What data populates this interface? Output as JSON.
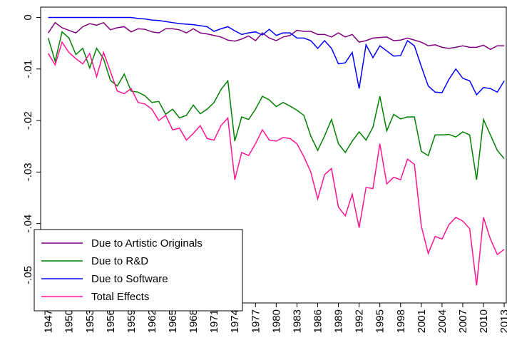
{
  "chart_data": {
    "type": "line",
    "x": [
      1947,
      1948,
      1949,
      1950,
      1951,
      1952,
      1953,
      1954,
      1955,
      1956,
      1957,
      1958,
      1959,
      1960,
      1961,
      1962,
      1963,
      1964,
      1965,
      1966,
      1967,
      1968,
      1969,
      1970,
      1971,
      1972,
      1973,
      1974,
      1975,
      1976,
      1977,
      1978,
      1979,
      1980,
      1981,
      1982,
      1983,
      1984,
      1985,
      1986,
      1987,
      1988,
      1989,
      1990,
      1991,
      1992,
      1993,
      1994,
      1995,
      1996,
      1997,
      1998,
      1999,
      2000,
      2001,
      2002,
      2003,
      2004,
      2005,
      2006,
      2007,
      2008,
      2009,
      2010,
      2011,
      2012,
      2013
    ],
    "series": [
      {
        "name": "Due to Artistic Originals",
        "color": "#800080",
        "values": [
          -0.003,
          -0.001,
          -0.002,
          -0.0025,
          -0.003,
          -0.0018,
          -0.0012,
          -0.0015,
          -0.001,
          -0.0024,
          -0.002,
          -0.0018,
          -0.0028,
          -0.0022,
          -0.0023,
          -0.0028,
          -0.003,
          -0.0022,
          -0.0022,
          -0.0024,
          -0.003,
          -0.0022,
          -0.003,
          -0.0032,
          -0.0035,
          -0.0038,
          -0.0044,
          -0.0046,
          -0.0042,
          -0.0036,
          -0.0045,
          -0.003,
          -0.004,
          -0.0045,
          -0.0038,
          -0.0035,
          -0.0025,
          -0.0027,
          -0.0027,
          -0.0033,
          -0.0033,
          -0.0038,
          -0.003,
          -0.0038,
          -0.0033,
          -0.0048,
          -0.0045,
          -0.004,
          -0.0039,
          -0.0038,
          -0.0045,
          -0.0044,
          -0.004,
          -0.0044,
          -0.0048,
          -0.0055,
          -0.0053,
          -0.0058,
          -0.006,
          -0.0058,
          -0.0055,
          -0.0058,
          -0.0058,
          -0.0054,
          -0.0062,
          -0.0055,
          -0.0055
        ]
      },
      {
        "name": "Due to R&D",
        "color": "#008000",
        "values": [
          -0.004,
          -0.0085,
          -0.0028,
          -0.004,
          -0.0072,
          -0.006,
          -0.0098,
          -0.006,
          -0.008,
          -0.0122,
          -0.0133,
          -0.011,
          -0.0143,
          -0.0145,
          -0.0152,
          -0.0165,
          -0.0163,
          -0.0188,
          -0.0178,
          -0.0195,
          -0.019,
          -0.017,
          -0.0187,
          -0.0178,
          -0.0165,
          -0.014,
          -0.0123,
          -0.024,
          -0.0193,
          -0.0198,
          -0.0178,
          -0.0153,
          -0.016,
          -0.0173,
          -0.0165,
          -0.0172,
          -0.018,
          -0.019,
          -0.023,
          -0.0258,
          -0.023,
          -0.0198,
          -0.0245,
          -0.0262,
          -0.024,
          -0.0222,
          -0.0238,
          -0.0213,
          -0.0153,
          -0.022,
          -0.0188,
          -0.0197,
          -0.0193,
          -0.0193,
          -0.026,
          -0.0268,
          -0.0228,
          -0.0228,
          -0.0227,
          -0.0232,
          -0.0222,
          -0.0228,
          -0.0315,
          -0.0198,
          -0.0228,
          -0.0258,
          -0.0274
        ]
      },
      {
        "name": "Due to Software",
        "color": "#0000ff",
        "values": [
          0,
          0,
          0,
          0,
          0,
          0,
          0,
          0,
          0,
          0,
          0,
          0,
          0,
          -0.0002,
          -0.0003,
          -0.0005,
          -0.0006,
          -0.0008,
          -0.001,
          -0.0012,
          -0.0013,
          -0.0014,
          -0.0016,
          -0.0018,
          -0.0027,
          -0.0022,
          -0.0018,
          -0.0026,
          -0.0033,
          -0.003,
          -0.0028,
          -0.0034,
          -0.0023,
          -0.0035,
          -0.003,
          -0.003,
          -0.004,
          -0.004,
          -0.0045,
          -0.006,
          -0.0045,
          -0.006,
          -0.009,
          -0.0088,
          -0.0068,
          -0.0138,
          -0.0053,
          -0.0078,
          -0.0055,
          -0.0065,
          -0.0075,
          -0.0074,
          -0.0045,
          -0.0055,
          -0.0095,
          -0.0133,
          -0.0145,
          -0.0146,
          -0.012,
          -0.01,
          -0.0118,
          -0.0123,
          -0.015,
          -0.0136,
          -0.0138,
          -0.0145,
          -0.0123
        ]
      },
      {
        "name": "Total Effects",
        "color": "#ff1493",
        "values": [
          -0.007,
          -0.0092,
          -0.0048,
          -0.0068,
          -0.008,
          -0.009,
          -0.007,
          -0.0115,
          -0.0068,
          -0.0105,
          -0.0143,
          -0.0148,
          -0.0138,
          -0.0165,
          -0.0168,
          -0.0178,
          -0.02,
          -0.019,
          -0.0218,
          -0.0215,
          -0.0238,
          -0.0225,
          -0.021,
          -0.0235,
          -0.0238,
          -0.021,
          -0.0195,
          -0.0315,
          -0.0262,
          -0.0268,
          -0.0245,
          -0.0218,
          -0.0238,
          -0.024,
          -0.0233,
          -0.0235,
          -0.0245,
          -0.027,
          -0.03,
          -0.0352,
          -0.0305,
          -0.0293,
          -0.0368,
          -0.0385,
          -0.0343,
          -0.0408,
          -0.033,
          -0.0332,
          -0.0245,
          -0.0323,
          -0.031,
          -0.0315,
          -0.0275,
          -0.0285,
          -0.0405,
          -0.0458,
          -0.0425,
          -0.043,
          -0.0402,
          -0.0388,
          -0.0395,
          -0.041,
          -0.052,
          -0.0388,
          -0.043,
          -0.046,
          -0.045
        ]
      }
    ],
    "xlim": [
      1945.9,
      2013.3
    ],
    "xticks": [
      1947,
      1950,
      1953,
      1956,
      1959,
      1962,
      1965,
      1968,
      1971,
      1974,
      1977,
      1980,
      1983,
      1986,
      1989,
      1992,
      1995,
      1998,
      2001,
      2004,
      2007,
      2010,
      2013
    ],
    "ylim": [
      -0.0554,
      0.002
    ],
    "yticks": [
      0,
      {
        "value": -0.01,
        "label": "-.01"
      },
      {
        "value": -0.02,
        "label": "-.02"
      },
      {
        "value": -0.03,
        "label": "-.03"
      },
      {
        "value": -0.04,
        "label": "-.04"
      },
      {
        "value": -0.05,
        "label": "-.05"
      }
    ],
    "legend": "lower left"
  }
}
